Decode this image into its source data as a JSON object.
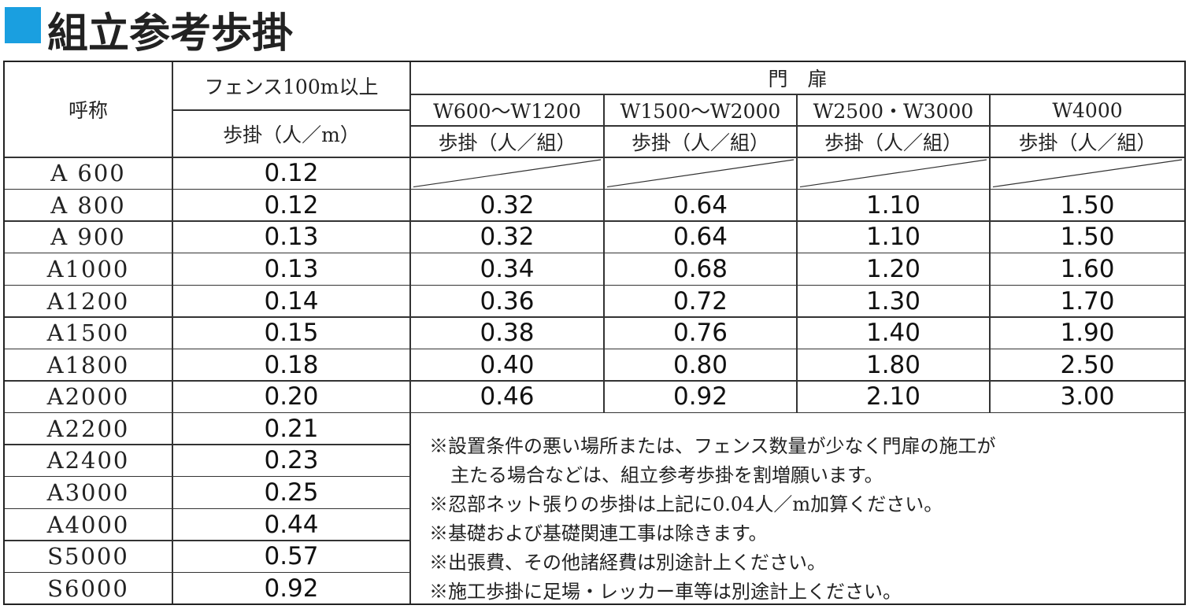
{
  "header": {
    "title": "組立参考歩掛"
  },
  "table": {
    "columns": {
      "name": "呼称",
      "fence": "フェンス100m以上",
      "fence_unit": "歩掛（人／m）",
      "gate": "門　扉",
      "gate_sizes": [
        "W600～W1200",
        "W1500～W2000",
        "W2500・W3000",
        "W4000"
      ],
      "gate_unit": "歩掛（人／組）"
    },
    "rows": [
      {
        "name": "A 600",
        "fence": "0.12"
      },
      {
        "name": "A 800",
        "fence": "0.12",
        "gates": [
          "0.32",
          "0.64",
          "1.10",
          "1.50"
        ]
      },
      {
        "name": "A 900",
        "fence": "0.13",
        "gates": [
          "0.32",
          "0.64",
          "1.10",
          "1.50"
        ]
      },
      {
        "name": "A1000",
        "fence": "0.13",
        "gates": [
          "0.34",
          "0.68",
          "1.20",
          "1.60"
        ]
      },
      {
        "name": "A1200",
        "fence": "0.14",
        "gates": [
          "0.36",
          "0.72",
          "1.30",
          "1.70"
        ]
      },
      {
        "name": "A1500",
        "fence": "0.15",
        "gates": [
          "0.38",
          "0.76",
          "1.40",
          "1.90"
        ]
      },
      {
        "name": "A1800",
        "fence": "0.18",
        "gates": [
          "0.40",
          "0.80",
          "1.80",
          "2.50"
        ]
      },
      {
        "name": "A2000",
        "fence": "0.20",
        "gates": [
          "0.46",
          "0.92",
          "2.10",
          "3.00"
        ]
      },
      {
        "name": "A2200",
        "fence": "0.21"
      },
      {
        "name": "A2400",
        "fence": "0.23"
      },
      {
        "name": "A3000",
        "fence": "0.25"
      },
      {
        "name": "A4000",
        "fence": "0.44"
      },
      {
        "name": "S5000",
        "fence": "0.57"
      },
      {
        "name": "S6000",
        "fence": "0.92"
      }
    ]
  },
  "notes": [
    "※設置条件の悪い場所または、フェンス数量が少なく門扉の施工が",
    "主たる場合などは、組立参考歩掛を割増願います。",
    "※忍部ネット張りの歩掛は上記に0.04人／m加算ください。",
    "※基礎および基礎関連工事は除きます。",
    "※出張費、その他諸経費は別途計上ください。",
    "※施工歩掛に足場・レッカー車等は別途計上ください。"
  ]
}
